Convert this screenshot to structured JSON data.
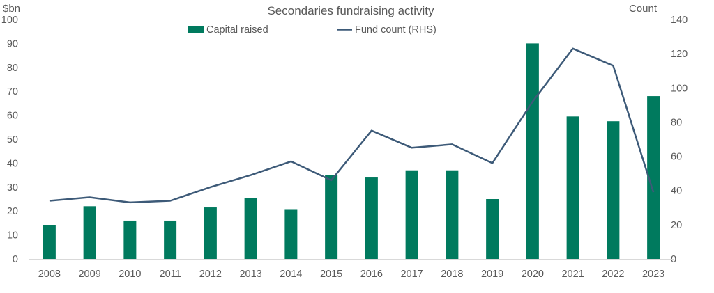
{
  "chart_data": {
    "type": "bar+line",
    "title": "Secondaries fundraising activity",
    "ylabel_left": "$bn",
    "ylabel_right": "Count",
    "categories": [
      "2008",
      "2009",
      "2010",
      "2011",
      "2012",
      "2013",
      "2014",
      "2015",
      "2016",
      "2017",
      "2018",
      "2019",
      "2020",
      "2021",
      "2022",
      "2023"
    ],
    "y_left": {
      "min": 0,
      "max": 100,
      "step": 10,
      "ticks": [
        "0",
        "10",
        "20",
        "30",
        "40",
        "50",
        "60",
        "70",
        "80",
        "90",
        "100"
      ]
    },
    "y_right": {
      "min": 0,
      "max": 140,
      "step": 20,
      "ticks": [
        "0",
        "20",
        "40",
        "60",
        "80",
        "100",
        "120",
        "140"
      ]
    },
    "series": [
      {
        "name": "Capital raised",
        "type": "bar",
        "axis": "left",
        "color": "#007a5e",
        "values": [
          14,
          22,
          16,
          16,
          21.5,
          25.5,
          20.5,
          35,
          34,
          37,
          37,
          25,
          90,
          59.5,
          57.5,
          68
        ]
      },
      {
        "name": "Fund count (RHS)",
        "type": "line",
        "axis": "right",
        "color": "#3d5a78",
        "values": [
          34,
          36,
          33,
          34,
          42,
          49,
          57,
          46,
          75,
          65,
          67,
          56,
          92,
          123,
          113,
          39
        ]
      }
    ],
    "legend_position": "top-center",
    "grid": false
  }
}
